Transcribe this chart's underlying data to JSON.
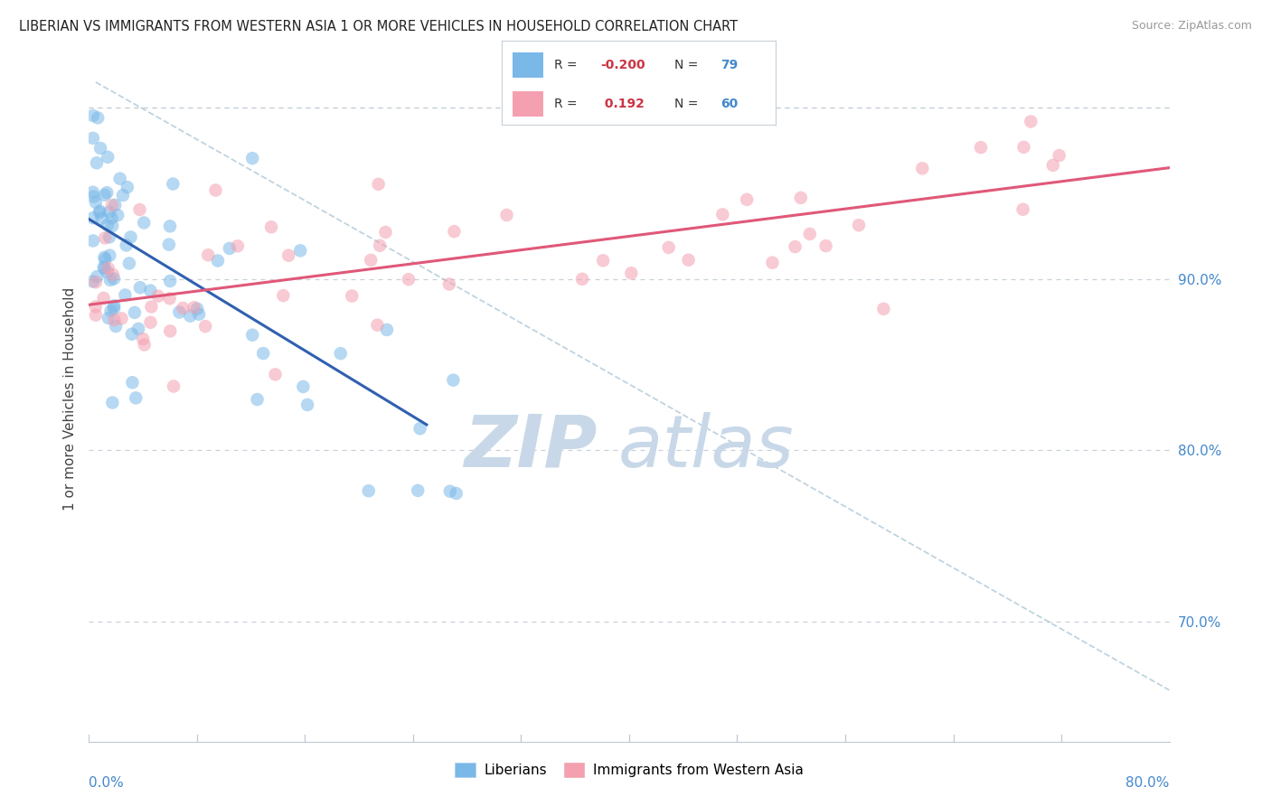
{
  "title": "LIBERIAN VS IMMIGRANTS FROM WESTERN ASIA 1 OR MORE VEHICLES IN HOUSEHOLD CORRELATION CHART",
  "source": "Source: ZipAtlas.com",
  "ylabel": "1 or more Vehicles in Household",
  "xlim": [
    0.0,
    80.0
  ],
  "ylim": [
    63.0,
    103.0
  ],
  "yticks": [
    70.0,
    80.0,
    90.0,
    100.0
  ],
  "color_blue": "#7ab8e8",
  "color_pink": "#f4a0b0",
  "color_trendline_blue": "#3060b0",
  "color_trendline_pink": "#e05878",
  "color_dashed": "#b0c8d8",
  "watermark_zip": "ZIP",
  "watermark_atlas": "atlas",
  "watermark_color": "#c8d8e8",
  "background_color": "#ffffff",
  "grid_color": "#c8d0d8",
  "blue_trend_x0": 0.0,
  "blue_trend_y0": 93.5,
  "blue_trend_x1": 25.0,
  "blue_trend_y1": 81.5,
  "pink_trend_x0": 0.0,
  "pink_trend_y0": 88.5,
  "pink_trend_x1": 80.0,
  "pink_trend_y1": 96.5,
  "dashed_x0": 0.5,
  "dashed_y0": 101.5,
  "dashed_x1": 80.0,
  "dashed_y1": 66.0,
  "legend_blue_r": "-0.200",
  "legend_blue_n": "79",
  "legend_pink_r": "0.192",
  "legend_pink_n": "60"
}
